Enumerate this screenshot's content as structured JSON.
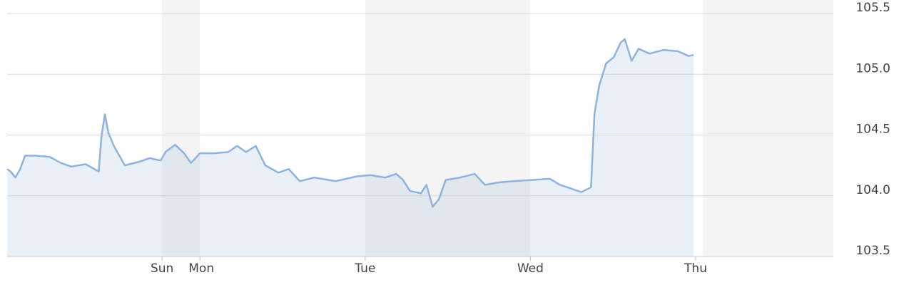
{
  "chart_data": {
    "type": "line",
    "xlim": [
      0,
      120
    ],
    "xticks": [
      {
        "value": 22.5,
        "label": "Sun"
      },
      {
        "value": 28,
        "label": "Mon"
      },
      {
        "value": 52,
        "label": "Tue"
      },
      {
        "value": 76,
        "label": "Wed"
      },
      {
        "value": 100,
        "label": "Thu"
      }
    ],
    "shaded_ranges": [
      [
        22.5,
        28
      ],
      [
        52,
        76
      ],
      [
        101,
        120
      ]
    ],
    "ylim": [
      103.5,
      105.5
    ],
    "yticks": [
      105.5,
      {
        "value": 105.0,
        "label": "105.0"
      },
      104.5,
      {
        "value": 104.0,
        "label": "104.0"
      },
      103.5
    ],
    "grid": true,
    "series": [
      {
        "color": "#8fb2de",
        "x": [
          0,
          0.5,
          1.2,
          1.9,
          2.6,
          4.1,
          6.2,
          7.8,
          9.3,
          11.4,
          13.3,
          13.7,
          14.2,
          14.7,
          15.5,
          17.1,
          19.2,
          20.7,
          22.3,
          23.0,
          24.4,
          25.7,
          26.7,
          28.0,
          30.1,
          32.1,
          33.4,
          34.7,
          36.1,
          37.5,
          39.4,
          40.9,
          42.5,
          44.6,
          47.7,
          50.8,
          52.8,
          54.9,
          56.5,
          57.5,
          58.5,
          60.1,
          60.9,
          61.8,
          62.7,
          63.7,
          65.8,
          67.9,
          69.4,
          71.5,
          73.6,
          76.2,
          78.8,
          80.3,
          81.9,
          83.4,
          84.8,
          85.3,
          86.0,
          87.0,
          88.1,
          89.1,
          89.7,
          90.7,
          91.7,
          93.3,
          95.3,
          97.4,
          99.0,
          99.7
        ],
        "values": [
          104.22,
          104.2,
          104.15,
          104.22,
          104.33,
          104.33,
          104.32,
          104.27,
          104.24,
          104.26,
          104.2,
          104.49,
          104.67,
          104.52,
          104.41,
          104.25,
          104.28,
          104.31,
          104.29,
          104.36,
          104.42,
          104.35,
          104.27,
          104.35,
          104.35,
          104.36,
          104.41,
          104.36,
          104.41,
          104.25,
          104.19,
          104.22,
          104.12,
          104.15,
          104.12,
          104.16,
          104.17,
          104.15,
          104.18,
          104.13,
          104.04,
          104.02,
          104.09,
          103.91,
          103.97,
          104.13,
          104.15,
          104.18,
          104.09,
          104.11,
          104.12,
          104.13,
          104.14,
          104.09,
          104.06,
          104.03,
          104.07,
          104.67,
          104.91,
          105.09,
          105.14,
          105.26,
          105.29,
          105.11,
          105.21,
          105.17,
          105.2,
          105.19,
          105.15,
          105.16
        ]
      }
    ]
  }
}
